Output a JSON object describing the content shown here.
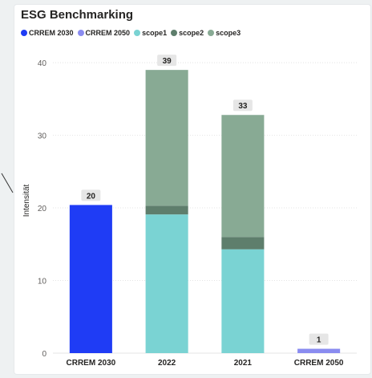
{
  "chart_data": {
    "type": "bar",
    "stacked": true,
    "title": "ESG Benchmarking",
    "ylabel": "Intensität",
    "xlabel": "",
    "ylim": [
      0,
      42
    ],
    "yticks": [
      0,
      10,
      20,
      30,
      40
    ],
    "grid": true,
    "legend_position": "top-left",
    "categories": [
      "CRREM 2030",
      "2022",
      "2021",
      "CRREM 2050"
    ],
    "series": [
      {
        "name": "CRREM 2030",
        "color": "#1f3cf5",
        "values": [
          20.4,
          0,
          0,
          0
        ]
      },
      {
        "name": "CRREM 2050",
        "color": "#8a8cf0",
        "values": [
          0,
          0,
          0,
          0.6
        ]
      },
      {
        "name": "scope1",
        "color": "#7ad3d3",
        "values": [
          0,
          19.1,
          14.3,
          0
        ]
      },
      {
        "name": "scope2",
        "color": "#5e7e6c",
        "values": [
          0,
          1.2,
          1.7,
          0
        ]
      },
      {
        "name": "scope3",
        "color": "#88aa94",
        "values": [
          0,
          18.7,
          16.8,
          0
        ]
      }
    ],
    "totals_labels": [
      "20",
      "39",
      "33",
      "1"
    ]
  }
}
